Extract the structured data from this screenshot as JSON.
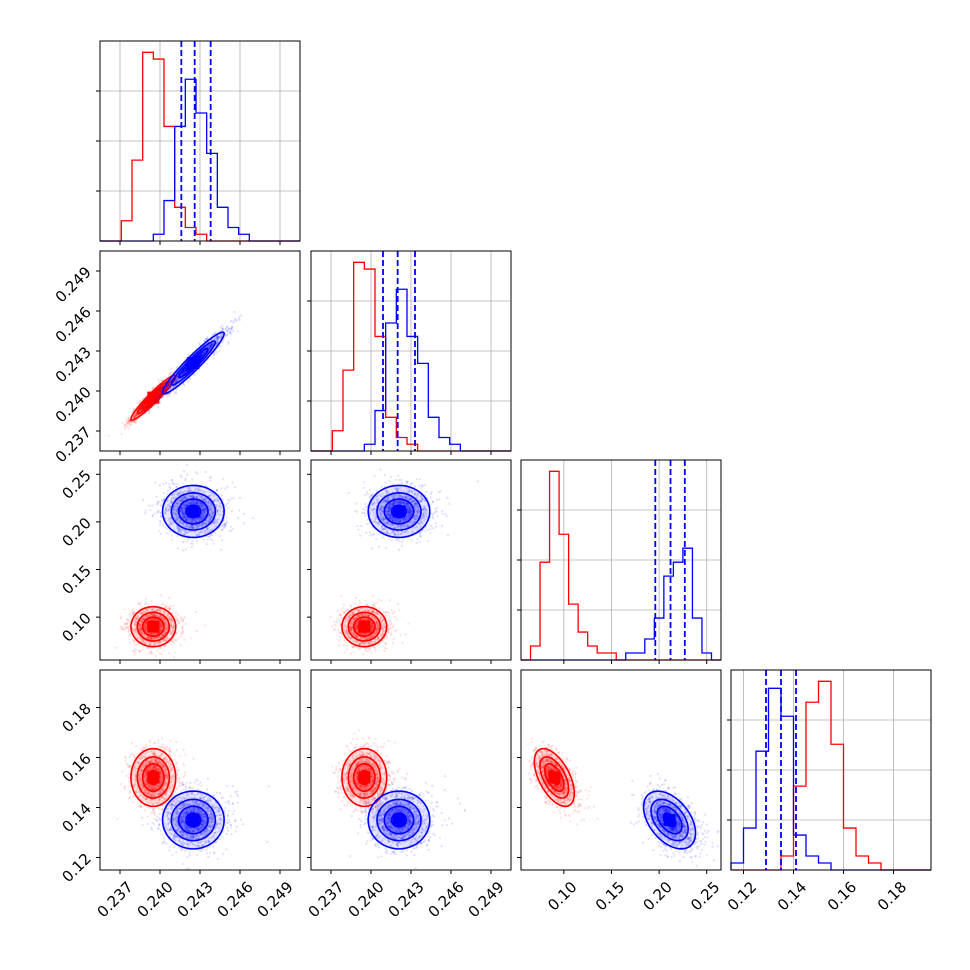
{
  "chart_data": {
    "type": "corner",
    "title": "",
    "grid": true,
    "colors": {
      "series_a": "#ff0000",
      "series_b": "#0000ff"
    },
    "quantile_lines": {
      "color": "#0000ff",
      "style": "dashed",
      "series": "series_b"
    },
    "parameters": [
      {
        "index": 0,
        "range": [
          0.2355,
          0.2505
        ],
        "ticks": [
          0.237,
          0.24,
          0.243,
          0.246,
          0.249
        ],
        "tick_labels": [
          "0.237",
          "0.240",
          "0.243",
          "0.246",
          "0.249"
        ]
      },
      {
        "index": 1,
        "range": [
          0.2355,
          0.2505
        ],
        "ticks": [
          0.237,
          0.24,
          0.243,
          0.246,
          0.249
        ],
        "tick_labels": [
          "0.237",
          "0.240",
          "0.243",
          "0.246",
          "0.249"
        ]
      },
      {
        "index": 2,
        "range": [
          0.055,
          0.265
        ],
        "ticks": [
          0.1,
          0.15,
          0.2,
          0.25
        ],
        "tick_labels": [
          "0.10",
          "0.15",
          "0.20",
          "0.25"
        ]
      },
      {
        "index": 3,
        "range": [
          0.115,
          0.195
        ],
        "ticks": [
          0.12,
          0.14,
          0.16,
          0.18
        ],
        "tick_labels": [
          "0.12",
          "0.14",
          "0.16",
          "0.18"
        ]
      }
    ],
    "series": [
      {
        "key": "series_a",
        "color": "#ff0000",
        "mean": [
          0.2395,
          0.2395,
          0.09,
          0.152
        ],
        "sd": [
          0.0008,
          0.0008,
          0.01,
          0.0055
        ],
        "corr": [
          [
            1.0,
            0.95,
            0.0,
            0.0
          ],
          [
            0.95,
            1.0,
            0.0,
            0.0
          ],
          [
            0.0,
            0.0,
            1.0,
            -0.55
          ],
          [
            0.0,
            0.0,
            -0.55,
            1.0
          ]
        ]
      },
      {
        "key": "series_b",
        "color": "#0000ff",
        "mean": [
          0.2425,
          0.2421,
          0.211,
          0.135
        ],
        "sd": [
          0.0011,
          0.0011,
          0.013,
          0.0055
        ],
        "corr": [
          [
            1.0,
            0.95,
            0.0,
            0.0
          ],
          [
            0.95,
            1.0,
            0.0,
            0.0
          ],
          [
            0.0,
            0.0,
            1.0,
            -0.45
          ],
          [
            0.0,
            0.0,
            -0.45,
            1.0
          ]
        ]
      }
    ],
    "quantiles": [
      [
        0.2416,
        0.2426,
        0.2438
      ],
      [
        0.2409,
        0.242,
        0.2433
      ],
      [
        0.196,
        0.212,
        0.227
      ],
      [
        0.129,
        0.135,
        0.141
      ]
    ],
    "histograms": [
      {
        "index": 0,
        "bin_edges": [
          0.2355,
          0.2363,
          0.2371,
          0.2379,
          0.2387,
          0.2395,
          0.2403,
          0.2411,
          0.2419,
          0.2427,
          0.2435,
          0.2443,
          0.2451,
          0.2459,
          0.2467,
          0.2475,
          0.2483,
          0.2491,
          0.2505
        ],
        "series_a": [
          0,
          0,
          3,
          12,
          28,
          27,
          17,
          5,
          2,
          1,
          0,
          0,
          0,
          0,
          0,
          0,
          0,
          0
        ],
        "series_b": [
          0,
          0,
          0,
          0,
          0,
          1,
          6,
          17,
          24,
          19,
          13,
          5,
          2,
          1,
          0,
          0,
          0,
          0
        ]
      },
      {
        "index": 1,
        "bin_edges": [
          0.2355,
          0.2363,
          0.2371,
          0.2379,
          0.2387,
          0.2395,
          0.2403,
          0.2411,
          0.2419,
          0.2427,
          0.2435,
          0.2443,
          0.2451,
          0.2459,
          0.2467,
          0.2475,
          0.2483,
          0.2491,
          0.2505
        ],
        "series_a": [
          0,
          0,
          3,
          12,
          28,
          27,
          17,
          5,
          2,
          1,
          0,
          0,
          0,
          0,
          0,
          0,
          0,
          0
        ],
        "series_b": [
          0,
          0,
          0,
          0,
          0,
          1,
          6,
          19,
          24,
          17,
          13,
          5,
          2,
          1,
          0,
          0,
          0,
          0
        ]
      },
      {
        "index": 2,
        "bin_edges": [
          0.055,
          0.065,
          0.075,
          0.085,
          0.095,
          0.105,
          0.115,
          0.125,
          0.135,
          0.145,
          0.155,
          0.165,
          0.175,
          0.185,
          0.195,
          0.205,
          0.215,
          0.225,
          0.235,
          0.245,
          0.255,
          0.265
        ],
        "series_a": [
          0,
          2,
          14,
          27,
          18,
          8,
          4,
          2,
          1,
          1,
          0,
          0,
          0,
          0,
          0,
          0,
          0,
          0,
          0,
          0,
          0
        ],
        "series_b": [
          0,
          0,
          0,
          0,
          0,
          0,
          0,
          0,
          0,
          0,
          0,
          1,
          1,
          3,
          6,
          12,
          14,
          16,
          6,
          1,
          0
        ]
      },
      {
        "index": 3,
        "bin_edges": [
          0.115,
          0.12,
          0.125,
          0.13,
          0.135,
          0.14,
          0.145,
          0.15,
          0.155,
          0.16,
          0.165,
          0.17,
          0.175,
          0.18,
          0.185,
          0.19,
          0.195
        ],
        "series_a": [
          0,
          0,
          0,
          0,
          2,
          12,
          24,
          27,
          18,
          6,
          2,
          1,
          0,
          0,
          0,
          0
        ],
        "series_b": [
          1,
          6,
          17,
          26,
          22,
          5,
          2,
          1,
          0,
          0,
          0,
          0,
          0,
          0,
          0,
          0
        ]
      }
    ]
  }
}
